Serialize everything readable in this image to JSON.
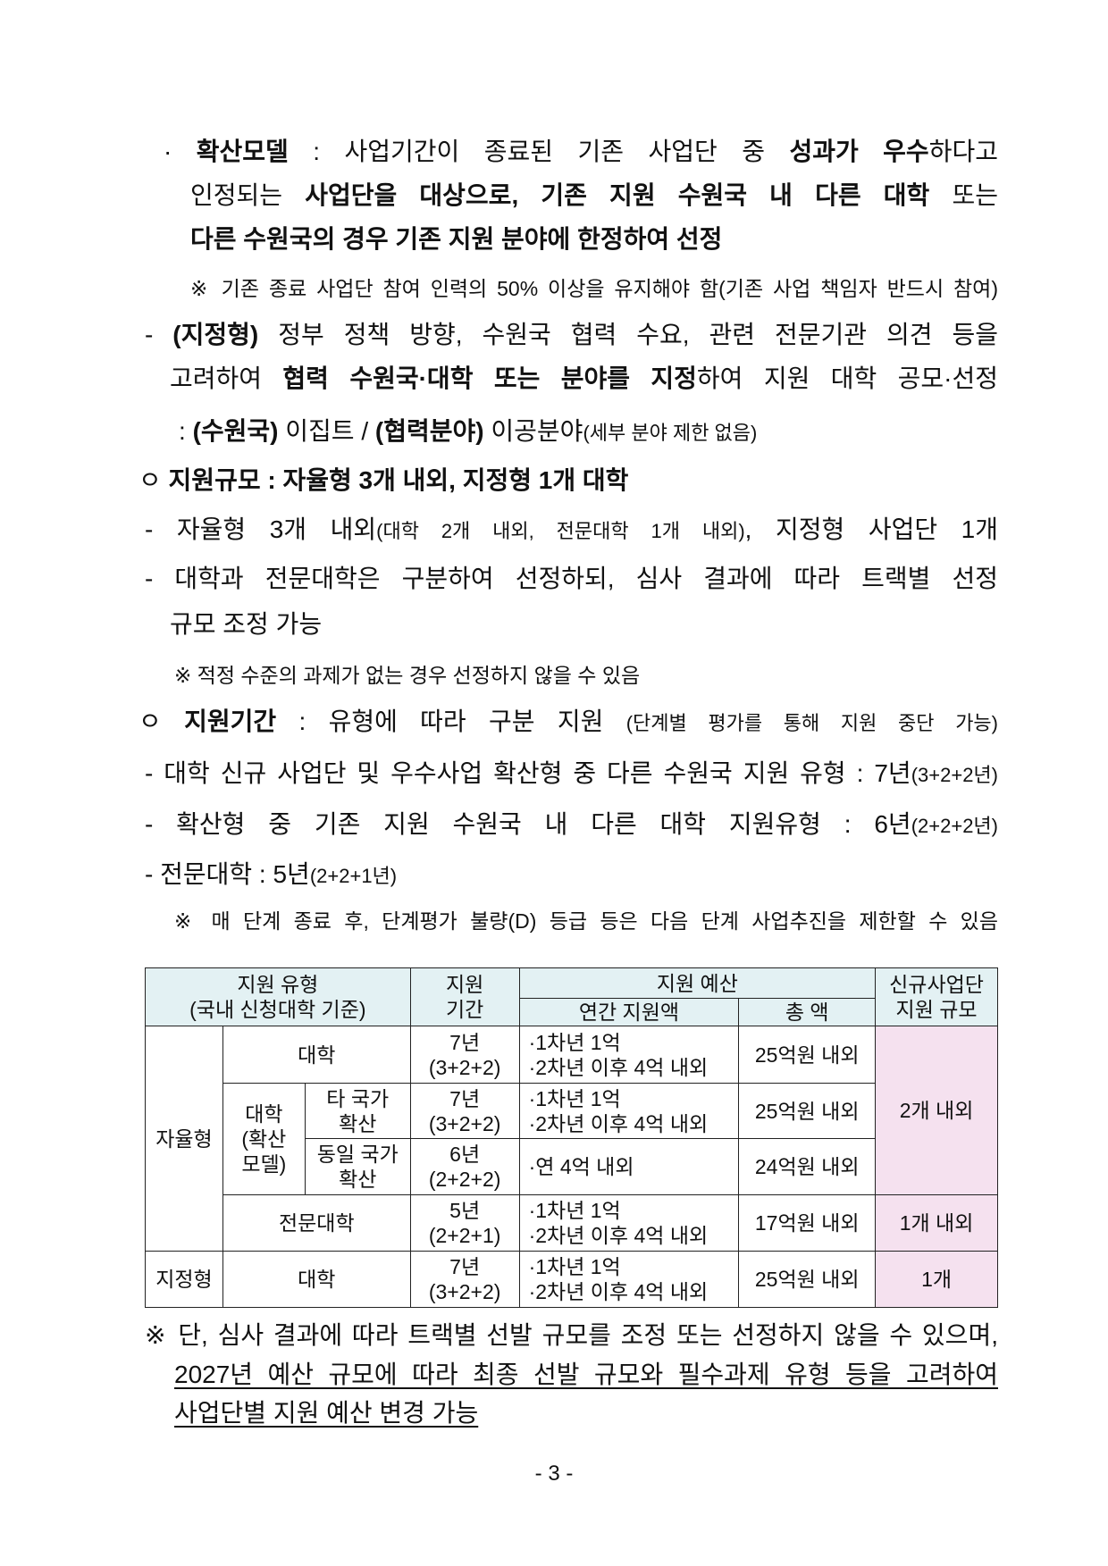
{
  "lines": [
    {
      "cls": "",
      "l": 183,
      "r": 1117,
      "y": 153,
      "seg": [
        {
          "t": "· "
        },
        {
          "t": "확산모델",
          "b": 1
        },
        {
          "t": " : 사업기간이 종료된 기존 사업단 중 "
        },
        {
          "t": "성과가 우수",
          "b": 1
        },
        {
          "t": "하다고"
        }
      ]
    },
    {
      "cls": "",
      "l": 213,
      "r": 1117,
      "y": 202,
      "seg": [
        {
          "t": "인정되는 "
        },
        {
          "t": "사업단을 대상으로, 기존 지원 수원국 내 다른 대학",
          "b": 1
        },
        {
          "t": " 또는"
        }
      ]
    },
    {
      "cls": "free",
      "l": 213,
      "r": 1117,
      "y": 251,
      "seg": [
        {
          "t": "다른 수원국의 경우 기존 지원 분야에 한정하여 선정",
          "b": 1
        }
      ]
    },
    {
      "cls": "note",
      "l": 213,
      "r": 1117,
      "y": 306,
      "seg": [
        {
          "t": "※ 기존 종료 사업단 참여 인력의 50% 이상을 유지해야 함(기존 사업 책임자 반드시 참여)"
        }
      ]
    },
    {
      "cls": "",
      "l": 162,
      "r": 1117,
      "y": 358,
      "seg": [
        {
          "t": "- "
        },
        {
          "t": "(지정형)",
          "b": 1
        },
        {
          "t": " 정부 정책 방향, 수원국 협력 수요, 관련 전문기관 의견 등을"
        }
      ]
    },
    {
      "cls": "",
      "l": 190,
      "r": 1117,
      "y": 407,
      "seg": [
        {
          "t": "고려하여 "
        },
        {
          "t": "협력 수원국·대학 또는 분야를 지정",
          "b": 1
        },
        {
          "t": "하여 지원 대학 공모·선정"
        }
      ]
    },
    {
      "cls": "free",
      "l": 200,
      "r": 1117,
      "y": 466,
      "seg": [
        {
          "t": ": "
        },
        {
          "t": "(수원국)",
          "b": 1
        },
        {
          "t": " 이집트 / "
        },
        {
          "t": "(협력분야)",
          "b": 1
        },
        {
          "t": " 이공분야"
        },
        {
          "t": "(세부 분야 제한 없음)",
          "s": 1
        }
      ]
    },
    {
      "cls": "free",
      "l": 155,
      "r": 1117,
      "y": 521,
      "seg": [
        {
          "t": "ㅇ "
        },
        {
          "t": "지원규모 : 자율형 3개 내외, 지정형 1개 대학",
          "b": 1
        }
      ]
    },
    {
      "cls": "",
      "l": 162,
      "r": 1117,
      "y": 576,
      "seg": [
        {
          "t": "- 자율형 3개 내외"
        },
        {
          "t": "(대학 2개 내외, 전문대학 1개 내외)",
          "s": 1
        },
        {
          "t": ", 지정형 사업단 1개"
        }
      ]
    },
    {
      "cls": "",
      "l": 162,
      "r": 1117,
      "y": 631,
      "seg": [
        {
          "t": "- 대학과 전문대학은 구분하여 선정하되, 심사 결과에 따라 트랙별 선정"
        }
      ]
    },
    {
      "cls": "free",
      "l": 190,
      "r": 1117,
      "y": 682,
      "seg": [
        {
          "t": "규모 조정 가능"
        }
      ]
    },
    {
      "cls": "note free",
      "l": 195,
      "r": 1117,
      "y": 739,
      "seg": [
        {
          "t": "※ 적정 수준의 과제가 없는 경우 선정하지 않을 수 있음"
        }
      ]
    },
    {
      "cls": "",
      "l": 155,
      "r": 1117,
      "y": 791,
      "seg": [
        {
          "t": "ㅇ "
        },
        {
          "t": "지원기간",
          "b": 1
        },
        {
          "t": " : 유형에 따라 구분 지원 "
        },
        {
          "t": "(단계별 평가를 통해 지원 중단 가능)",
          "s": 1
        }
      ]
    },
    {
      "cls": "",
      "l": 162,
      "r": 1117,
      "y": 849,
      "seg": [
        {
          "t": "- 대학 신규 사업단 및 우수사업 확산형 중 다른 수원국 지원 유형 : 7년"
        },
        {
          "t": "(3+2+2년)",
          "s": 1
        }
      ]
    },
    {
      "cls": "",
      "l": 162,
      "r": 1117,
      "y": 906,
      "seg": [
        {
          "t": "- 확산형 중 기존 지원 수원국 내 다른 대학 지원유형 : 6년"
        },
        {
          "t": "(2+2+2년)",
          "s": 1
        }
      ]
    },
    {
      "cls": "free",
      "l": 162,
      "r": 1117,
      "y": 962,
      "seg": [
        {
          "t": "- 전문대학 : 5년"
        },
        {
          "t": "(2+2+1년)",
          "s": 1
        }
      ]
    },
    {
      "cls": "note",
      "l": 195,
      "r": 1117,
      "y": 1014,
      "seg": [
        {
          "t": "※ 매 단계 종료 후, 단계평가 불량(D) 등급 등은 다음 단계 사업추진을 제한할 수 있음"
        }
      ]
    },
    {
      "cls": "",
      "l": 162,
      "r": 1117,
      "y": 1478,
      "seg": [
        {
          "t": "※ 단, 심사 결과에 따라 트랙별 선발 규모를 조정 또는 선정하지 않을 수 있으며,"
        }
      ]
    },
    {
      "cls": "",
      "l": 195,
      "r": 1117,
      "y": 1522,
      "seg": [
        {
          "t": "2027년 예산 규모에 따라 최종 선발 규모와 필수과제 유형 등을 고려하여",
          "u": 1
        }
      ]
    },
    {
      "cls": "free",
      "l": 195,
      "r": 1117,
      "y": 1565,
      "seg": [
        {
          "t": "사업단별 지원 예산 변경 가능",
          "u": 1
        }
      ]
    }
  ],
  "table": {
    "header": {
      "type": "지원 유형",
      "type_sub": "(국내 신청대학 기준)",
      "period": "지원",
      "period_sub": "기간",
      "budget": "지원 예산",
      "annual": "연간 지원액",
      "total": "총 액",
      "scale": "신규사업단",
      "scale_sub": "지원 규모"
    },
    "autonomous": "자율형",
    "designated": "지정형",
    "diffusion": "대학",
    "diffusion_sub1": "(확산",
    "diffusion_sub2": "모델)",
    "rows": [
      {
        "name": "대학",
        "period": "7년",
        "period_sub": "(3+2+2)",
        "a1": "·1차년 1억",
        "a2": "·2차년 이후 4억 내외",
        "total": "25억원 내외"
      },
      {
        "name": "타 국가",
        "name2": "확산",
        "period": "7년",
        "period_sub": "(3+2+2)",
        "a1": "·1차년 1억",
        "a2": "·2차년 이후 4억 내외",
        "total": "25억원 내외"
      },
      {
        "name": "동일 국가",
        "name2": "확산",
        "period": "6년",
        "period_sub": "(2+2+2)",
        "a1": "·연 4억 내외",
        "total": "24억원 내외"
      },
      {
        "name": "전문대학",
        "period": "5년",
        "period_sub": "(2+2+1)",
        "a1": "·1차년 1억",
        "a2": "·2차년 이후 4억 내외",
        "total": "17억원 내외"
      },
      {
        "name": "대학",
        "period": "7년",
        "period_sub": "(3+2+2)",
        "a1": "·1차년 1억",
        "a2": "·2차년 이후 4억 내외",
        "total": "25억원 내외"
      }
    ],
    "scale_univ": "2개 내외",
    "scale_college": "1개 내외",
    "scale_designated": "1개",
    "colors": {
      "header_bg": "#e3f1f3",
      "scale_bg": "#f5e1ef"
    }
  },
  "page_number": "- 3 -"
}
